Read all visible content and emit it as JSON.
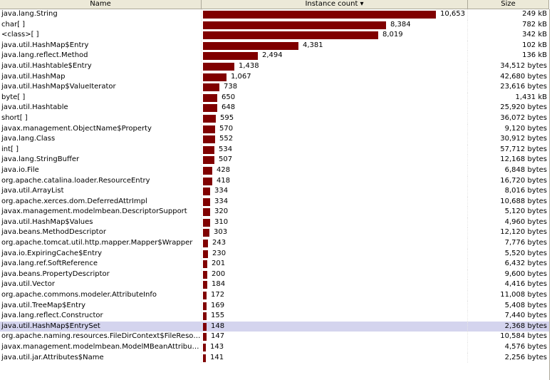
{
  "header": {
    "name": "Name",
    "count": "Instance count ▾",
    "size": "Size"
  },
  "bar_color": "#800000",
  "selected_row": 29,
  "rows": [
    {
      "name": "java.lang.String",
      "count": 10653,
      "count_label": "10,653",
      "size": "249 kB"
    },
    {
      "name": "char[ ]",
      "count": 8384,
      "count_label": "8,384",
      "size": "782 kB"
    },
    {
      "name": "<class>[ ]",
      "count": 8019,
      "count_label": "8,019",
      "size": "342 kB"
    },
    {
      "name": "java.util.HashMap$Entry",
      "count": 4381,
      "count_label": "4,381",
      "size": "102 kB"
    },
    {
      "name": "java.lang.reflect.Method",
      "count": 2494,
      "count_label": "2,494",
      "size": "136 kB"
    },
    {
      "name": "java.util.Hashtable$Entry",
      "count": 1438,
      "count_label": "1,438",
      "size": "34,512 bytes"
    },
    {
      "name": "java.util.HashMap",
      "count": 1067,
      "count_label": "1,067",
      "size": "42,680 bytes"
    },
    {
      "name": "java.util.HashMap$ValueIterator",
      "count": 738,
      "count_label": "738",
      "size": "23,616 bytes"
    },
    {
      "name": "byte[ ]",
      "count": 650,
      "count_label": "650",
      "size": "1,431 kB"
    },
    {
      "name": "java.util.Hashtable",
      "count": 648,
      "count_label": "648",
      "size": "25,920 bytes"
    },
    {
      "name": "short[ ]",
      "count": 595,
      "count_label": "595",
      "size": "36,072 bytes"
    },
    {
      "name": "javax.management.ObjectName$Property",
      "count": 570,
      "count_label": "570",
      "size": "9,120 bytes"
    },
    {
      "name": "java.lang.Class",
      "count": 552,
      "count_label": "552",
      "size": "30,912 bytes"
    },
    {
      "name": "int[ ]",
      "count": 534,
      "count_label": "534",
      "size": "57,712 bytes"
    },
    {
      "name": "java.lang.StringBuffer",
      "count": 507,
      "count_label": "507",
      "size": "12,168 bytes"
    },
    {
      "name": "java.io.File",
      "count": 428,
      "count_label": "428",
      "size": "6,848 bytes"
    },
    {
      "name": "org.apache.catalina.loader.ResourceEntry",
      "count": 418,
      "count_label": "418",
      "size": "16,720 bytes"
    },
    {
      "name": "java.util.ArrayList",
      "count": 334,
      "count_label": "334",
      "size": "8,016 bytes"
    },
    {
      "name": "org.apache.xerces.dom.DeferredAttrImpl",
      "count": 334,
      "count_label": "334",
      "size": "10,688 bytes"
    },
    {
      "name": "javax.management.modelmbean.DescriptorSupport",
      "count": 320,
      "count_label": "320",
      "size": "5,120 bytes"
    },
    {
      "name": "java.util.HashMap$Values",
      "count": 310,
      "count_label": "310",
      "size": "4,960 bytes"
    },
    {
      "name": "java.beans.MethodDescriptor",
      "count": 303,
      "count_label": "303",
      "size": "12,120 bytes"
    },
    {
      "name": "org.apache.tomcat.util.http.mapper.Mapper$Wrapper",
      "count": 243,
      "count_label": "243",
      "size": "7,776 bytes"
    },
    {
      "name": "java.io.ExpiringCache$Entry",
      "count": 230,
      "count_label": "230",
      "size": "5,520 bytes"
    },
    {
      "name": "java.lang.ref.SoftReference",
      "count": 201,
      "count_label": "201",
      "size": "6,432 bytes"
    },
    {
      "name": "java.beans.PropertyDescriptor",
      "count": 200,
      "count_label": "200",
      "size": "9,600 bytes"
    },
    {
      "name": "java.util.Vector",
      "count": 184,
      "count_label": "184",
      "size": "4,416 bytes"
    },
    {
      "name": "org.apache.commons.modeler.AttributeInfo",
      "count": 172,
      "count_label": "172",
      "size": "11,008 bytes"
    },
    {
      "name": "java.util.TreeMap$Entry",
      "count": 169,
      "count_label": "169",
      "size": "5,408 bytes"
    },
    {
      "name": "java.lang.reflect.Constructor",
      "count": 155,
      "count_label": "155",
      "size": "7,440 bytes"
    },
    {
      "name": "java.util.HashMap$EntrySet",
      "count": 148,
      "count_label": "148",
      "size": "2,368 bytes"
    },
    {
      "name": "org.apache.naming.resources.FileDirContext$FileResourceA...",
      "count": 147,
      "count_label": "147",
      "size": "10,584 bytes"
    },
    {
      "name": "javax.management.modelmbean.ModelMBeanAttributeInfo",
      "count": 143,
      "count_label": "143",
      "size": "4,576 bytes"
    },
    {
      "name": "java.util.jar.Attributes$Name",
      "count": 141,
      "count_label": "141",
      "size": "2,256 bytes"
    }
  ]
}
